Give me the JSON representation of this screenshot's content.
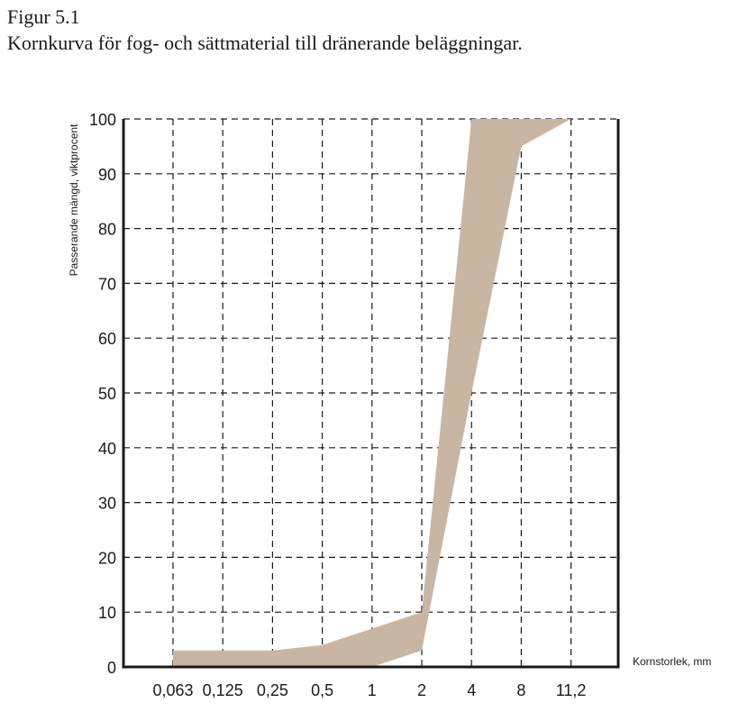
{
  "figure": {
    "number": "Figur 5.1",
    "caption": "Kornkurva för fog- och sättmaterial till dränerande beläggningar."
  },
  "colors": {
    "band": "#c8b6a3",
    "axis": "#1a1a1a",
    "grid": "#1a1a1a"
  },
  "chart_data": {
    "type": "area",
    "title": "Kornkurva för fog- och sättmaterial till dränerande beläggningar.",
    "xlabel": "Kornstorlek, mm",
    "ylabel": "Passerande mängd, viktprocent",
    "x_categories": [
      "0,063",
      "0,125",
      "0,25",
      "0,5",
      "1",
      "2",
      "4",
      "8",
      "11,2"
    ],
    "y_ticks": [
      "0",
      "10",
      "20",
      "30",
      "40",
      "50",
      "60",
      "70",
      "80",
      "90",
      "100"
    ],
    "ylim": [
      0,
      100
    ],
    "grid": true,
    "band": {
      "upper": [
        {
          "x": "0,063",
          "y": 3
        },
        {
          "x": "0,125",
          "y": 3
        },
        {
          "x": "0,25",
          "y": 3
        },
        {
          "x": "0,5",
          "y": 4
        },
        {
          "x": "2",
          "y": 10
        },
        {
          "x": "4",
          "y": 100
        },
        {
          "x": "11,2",
          "y": 100
        }
      ],
      "lower": [
        {
          "x": "0,063",
          "y": 0
        },
        {
          "x": "1",
          "y": 0
        },
        {
          "x": "2",
          "y": 3
        },
        {
          "x": "4",
          "y": 50
        },
        {
          "x": "8",
          "y": 95
        },
        {
          "x": "11,2",
          "y": 100
        }
      ]
    }
  }
}
